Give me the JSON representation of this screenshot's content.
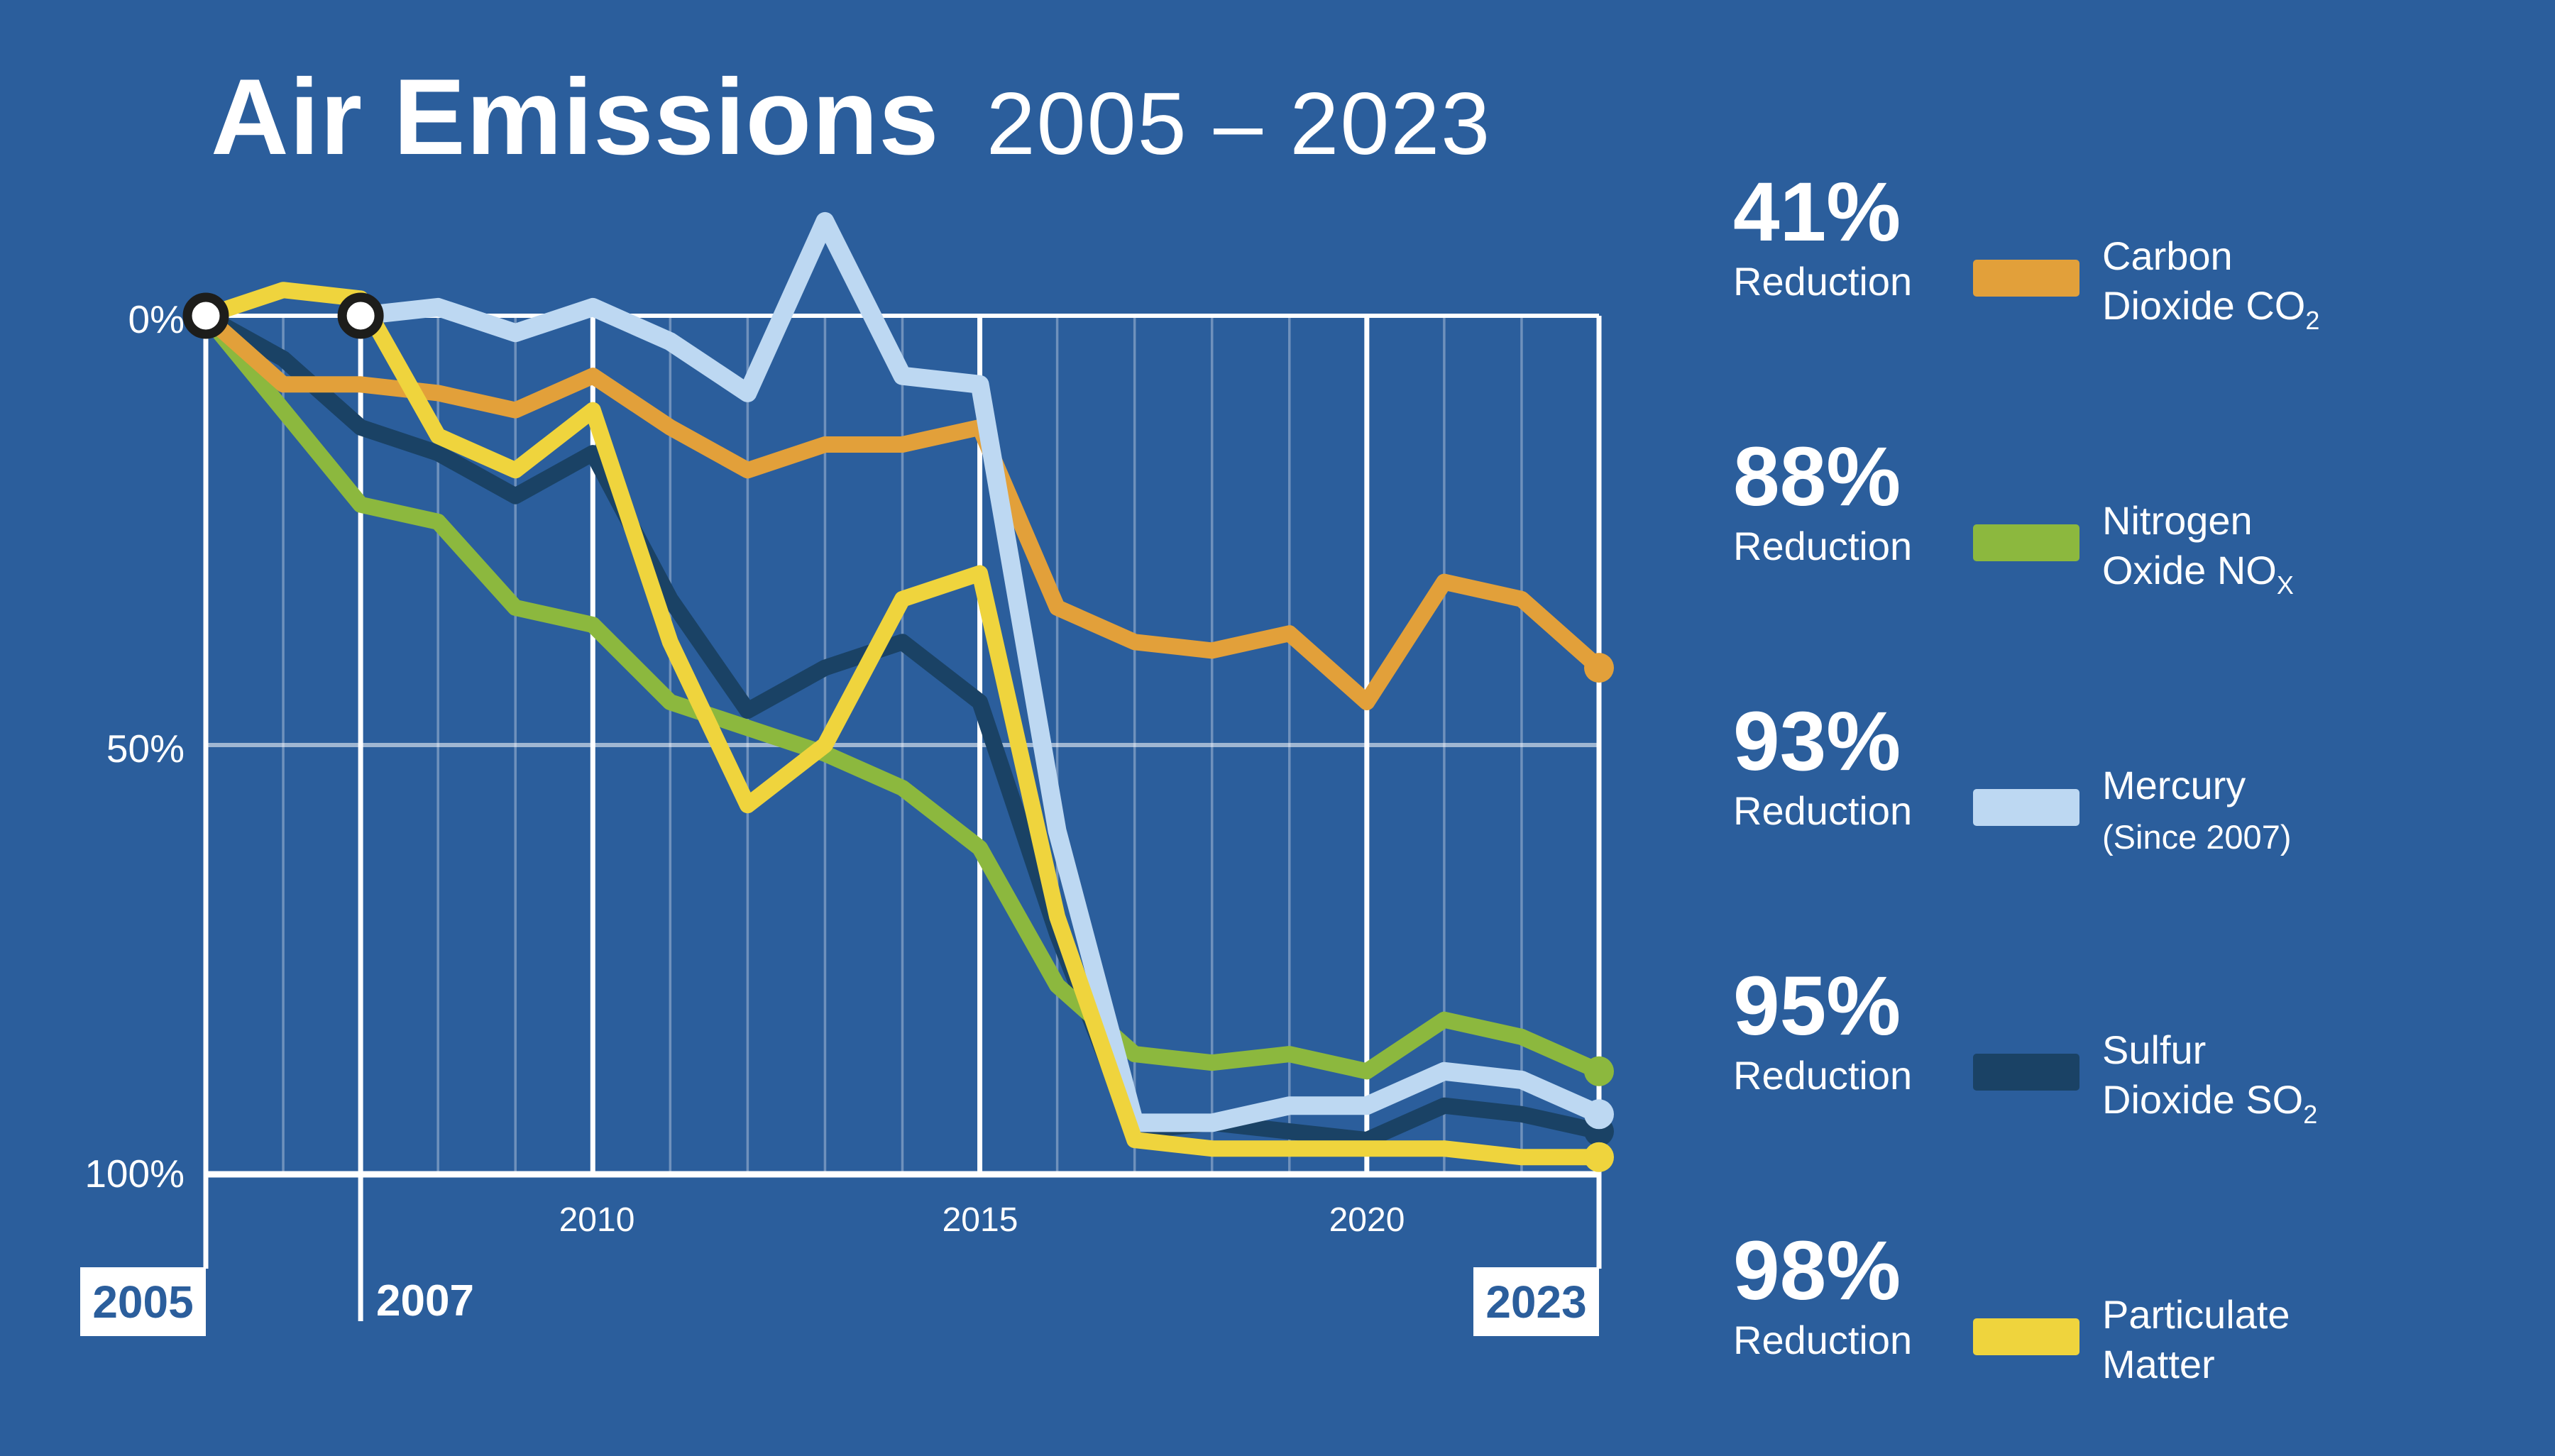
{
  "title": {
    "main": "Air Emissions",
    "range": "2005 – 2023"
  },
  "chart_data": {
    "type": "line",
    "title": "Air Emissions 2005 – 2023",
    "x": [
      2005,
      2006,
      2007,
      2008,
      2009,
      2010,
      2011,
      2012,
      2013,
      2014,
      2015,
      2016,
      2017,
      2018,
      2019,
      2020,
      2021,
      2022,
      2023
    ],
    "x_axis": {
      "boxed_left": "2005",
      "plain_label": "2007",
      "ticks": [
        "2010",
        "2015",
        "2020"
      ],
      "tick_years": [
        2010,
        2015,
        2020
      ],
      "boxed_right": "2023",
      "major_years": [
        2005,
        2007,
        2010,
        2015,
        2020,
        2023
      ]
    },
    "y_axis": {
      "labels": [
        "0%",
        "50%",
        "100%"
      ],
      "values": [
        0,
        50,
        100
      ],
      "unit": "percent reduction since 2005",
      "inverted": true,
      "ylim": [
        -14,
        100
      ]
    },
    "grid": {
      "minor_vertical_every_year": true,
      "horizontal_lines": [
        0,
        50,
        100
      ]
    },
    "legend_position": "right",
    "series": [
      {
        "key": "co2",
        "name": "Carbon Dioxide CO2",
        "color": "#E2A03A",
        "values": [
          0,
          8,
          8,
          9,
          11,
          7,
          13,
          18,
          15,
          15,
          13,
          34,
          38,
          39,
          37,
          45,
          31,
          33,
          41
        ]
      },
      {
        "key": "nox",
        "name": "Nitrogen Oxide NOx",
        "color": "#8CB83E",
        "values": [
          0,
          11,
          22,
          24,
          34,
          36,
          45,
          48,
          51,
          55,
          62,
          78,
          86,
          87,
          86,
          88,
          82,
          84,
          88
        ]
      },
      {
        "key": "mercury",
        "name": "Mercury (Since 2007)",
        "color": "#BDD8F2",
        "values": [
          null,
          null,
          0,
          -1,
          2,
          -1,
          3,
          9,
          -11,
          7,
          8,
          60,
          94,
          94,
          92,
          92,
          88,
          89,
          93
        ]
      },
      {
        "key": "so2",
        "name": "Sulfur Dioxide SO2",
        "color": "#1A4265",
        "values": [
          0,
          5,
          13,
          16,
          21,
          16,
          33,
          46,
          41,
          38,
          45,
          72,
          95,
          94,
          95,
          96,
          92,
          93,
          95
        ]
      },
      {
        "key": "pm",
        "name": "Particulate Matter",
        "color": "#EFD43D",
        "values": [
          0,
          -3,
          -2,
          14,
          18,
          11,
          38,
          57,
          50,
          33,
          30,
          70,
          96,
          97,
          97,
          97,
          97,
          98,
          98
        ]
      }
    ],
    "markers": {
      "start_circle_years": [
        2005,
        2007
      ],
      "end_dot_year": 2023
    }
  },
  "legend": {
    "items": [
      {
        "percent": "41%",
        "reduction": "Reduction",
        "line1": "Carbon",
        "line2": "Dioxide CO",
        "line2_sub": "2",
        "note": "",
        "color": "#E2A03A"
      },
      {
        "percent": "88%",
        "reduction": "Reduction",
        "line1": "Nitrogen",
        "line2": "Oxide NO",
        "line2_sub": "X",
        "note": "",
        "color": "#8CB83E"
      },
      {
        "percent": "93%",
        "reduction": "Reduction",
        "line1": "Mercury",
        "line2": "",
        "line2_sub": "",
        "note": "(Since 2007)",
        "color": "#BDD8F2"
      },
      {
        "percent": "95%",
        "reduction": "Reduction",
        "line1": "Sulfur",
        "line2": "Dioxide SO",
        "line2_sub": "2",
        "note": "",
        "color": "#1A4265"
      },
      {
        "percent": "98%",
        "reduction": "Reduction",
        "line1": "Particulate",
        "line2": "Matter",
        "line2_sub": "",
        "note": "",
        "color": "#EFD43D"
      }
    ]
  },
  "colors": {
    "background": "#2B5E9C",
    "axis": "#FFFFFF",
    "grid_minor": "rgba(255,255,255,0.32)",
    "grid_half": "rgba(255,255,255,0.55)",
    "marker_ring": "#1D1D1B",
    "year_box_text": "#2B5E9C"
  }
}
